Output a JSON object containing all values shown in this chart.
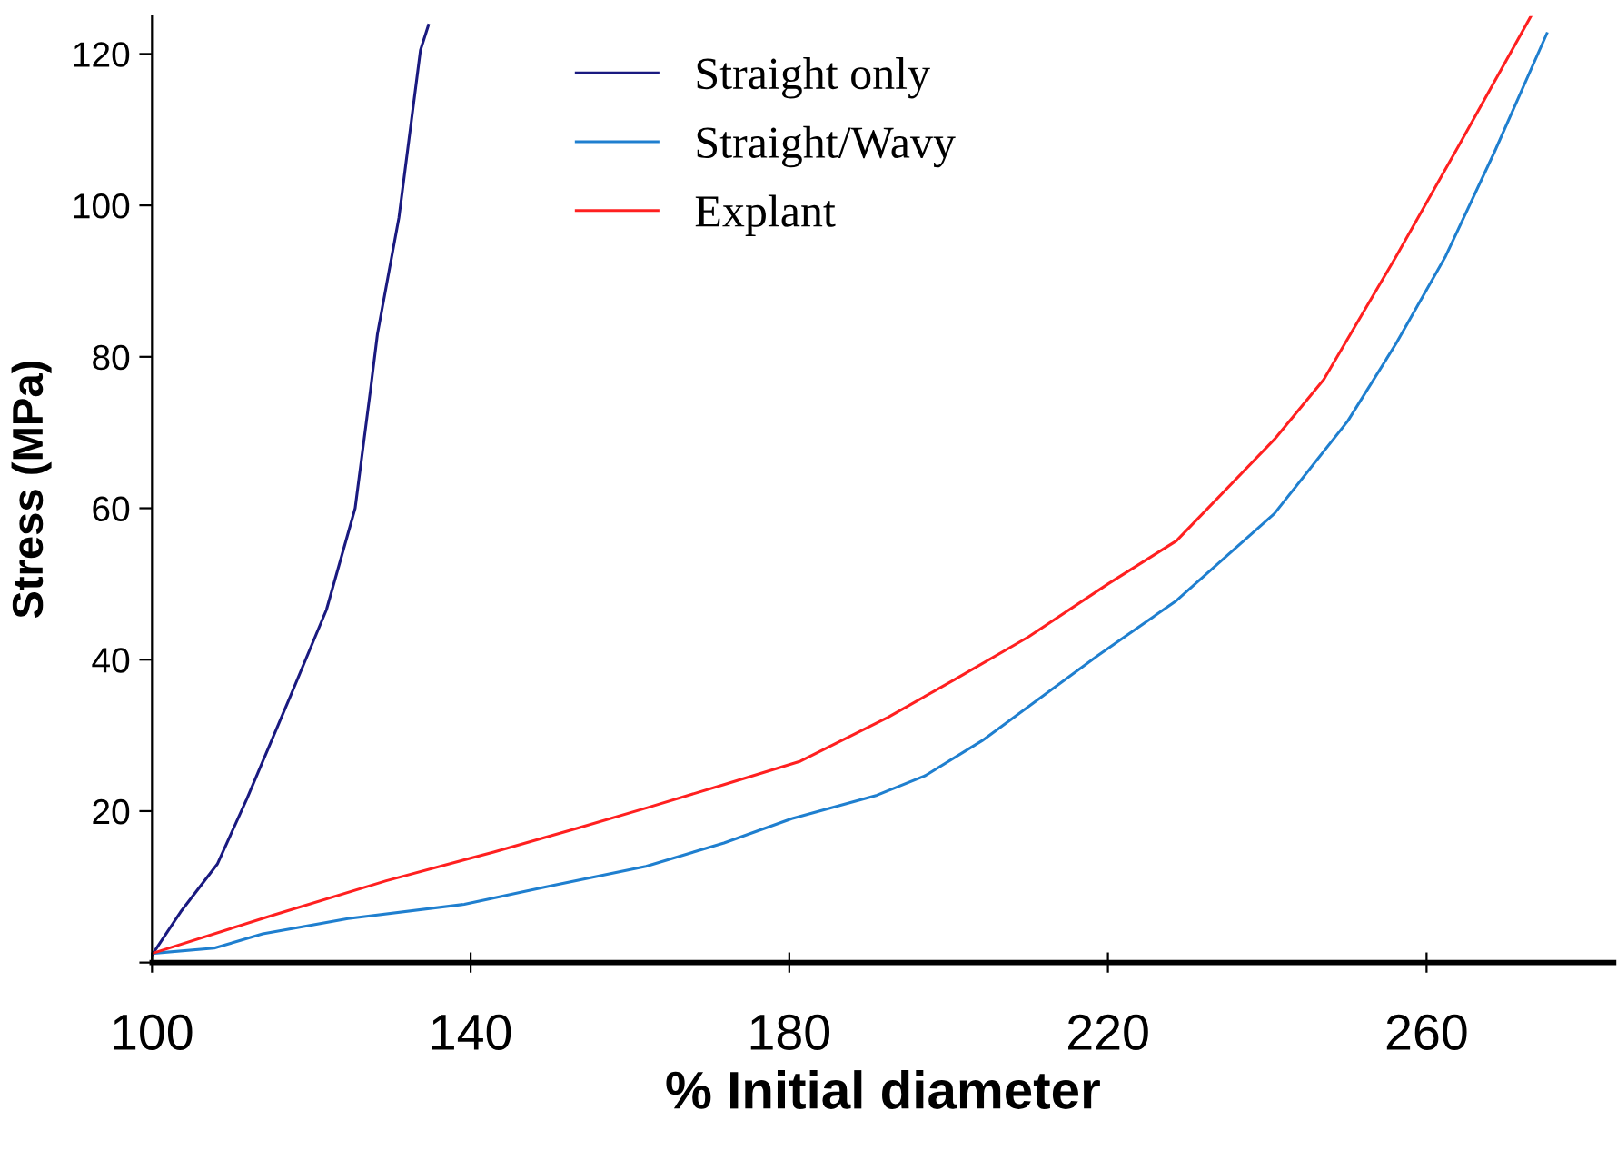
{
  "chart_data": {
    "type": "line",
    "xlabel": "% Initial diameter",
    "ylabel": "Stress (MPa)",
    "xlim": [
      100,
      283.5
    ],
    "ylim": [
      0,
      125
    ],
    "xticks": [
      100,
      140,
      180,
      220,
      260
    ],
    "yticks": [
      {
        "value": 0,
        "label": null
      },
      20,
      40,
      60,
      80,
      100,
      120
    ],
    "grid": false,
    "legend": "top",
    "marker": "none",
    "line_style": "solid",
    "series": [
      {
        "name": "Straight only",
        "color": "#1a1a80",
        "x": [
          100,
          103.6,
          108.2,
          111.9,
          117.3,
          121.9,
          125.5,
          127.4,
          128.3,
          131.0,
          133.7,
          134.7
        ],
        "values": [
          1,
          6.7,
          13.0,
          21.6,
          35.0,
          46.6,
          60.0,
          75.4,
          83.0,
          98.4,
          120.5,
          123.8
        ]
      },
      {
        "name": "Straight/Wavy",
        "color": "#1f7fcf",
        "x": [
          100,
          107.8,
          113.9,
          124.6,
          139.2,
          149.9,
          162,
          171.8,
          180.3,
          191,
          197.1,
          204.2,
          218.8,
          228.6,
          240.9,
          250.1,
          256.2,
          262.4,
          268.5,
          275.1
        ],
        "values": [
          1.2,
          1.9,
          3.8,
          5.8,
          7.7,
          10.1,
          12.7,
          15.8,
          19.0,
          22.1,
          24.7,
          29.3,
          40.6,
          47.8,
          59.3,
          71.5,
          81.8,
          93.3,
          107,
          122.7
        ]
      },
      {
        "name": "Explant",
        "color": "#ff2020",
        "x": [
          100,
          115,
          129.4,
          142.9,
          153.6,
          162,
          171.8,
          181.4,
          192.4,
          200.8,
          210,
          220,
          228.6,
          240.9,
          247.1,
          256.2,
          264,
          273.1
        ],
        "values": [
          1.2,
          6.2,
          10.8,
          14.6,
          17.8,
          20.4,
          23.5,
          26.6,
          32.4,
          37.4,
          43,
          50,
          55.7,
          69.1,
          77,
          93.3,
          107.8,
          125
        ]
      }
    ]
  }
}
